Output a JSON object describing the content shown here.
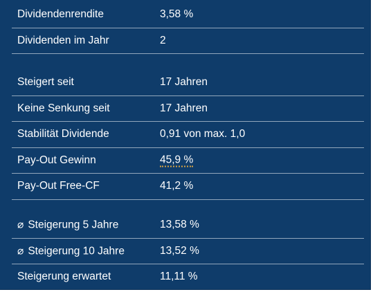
{
  "section1": [
    {
      "label": "Dividendenrendite",
      "value": "3,58 %"
    },
    {
      "label": "Dividenden im Jahr",
      "value": "2"
    }
  ],
  "section2": [
    {
      "label": "Steigert seit",
      "value": "17 Jahren"
    },
    {
      "label": "Keine Senkung seit",
      "value": "17 Jahren"
    },
    {
      "label": "Stabilität Dividende",
      "value": "0,91 von max. 1,0"
    },
    {
      "label": "Pay-Out Gewinn",
      "value": "45,9 %"
    },
    {
      "label": "Pay-Out Free-CF",
      "value": "41,2 %"
    }
  ],
  "section3": [
    {
      "symbol": "⌀",
      "label": "Steigerung 5 Jahre",
      "value": "13,58 %"
    },
    {
      "symbol": "⌀",
      "label": "Steigerung 10 Jahre",
      "value": "13,52 %"
    },
    {
      "label": "Steigerung erwartet",
      "value": "11,11 %"
    }
  ],
  "colors": {
    "panel_background": "#0f3c6a",
    "row_divider": "#a9b9cc",
    "text": "#ffffff",
    "tooltip_underline": "#d9a441"
  }
}
